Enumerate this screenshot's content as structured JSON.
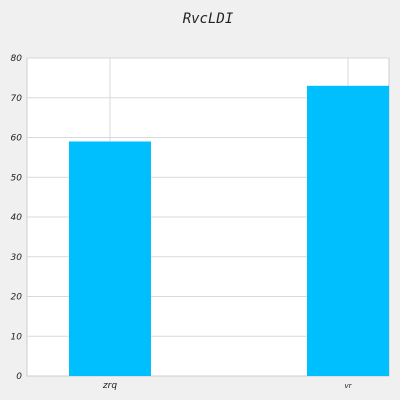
{
  "chart_data": {
    "type": "bar",
    "title": "RvcLDI",
    "categories": [
      "zrq",
      "vr"
    ],
    "values": [
      59,
      73
    ],
    "xlabel": "",
    "ylabel": "",
    "ylim": [
      0,
      80
    ],
    "yticks": [
      "0",
      "10",
      "20",
      "30",
      "40",
      "50",
      "60",
      "70",
      "80"
    ],
    "grid": true,
    "bar_color": "#00bfff"
  }
}
